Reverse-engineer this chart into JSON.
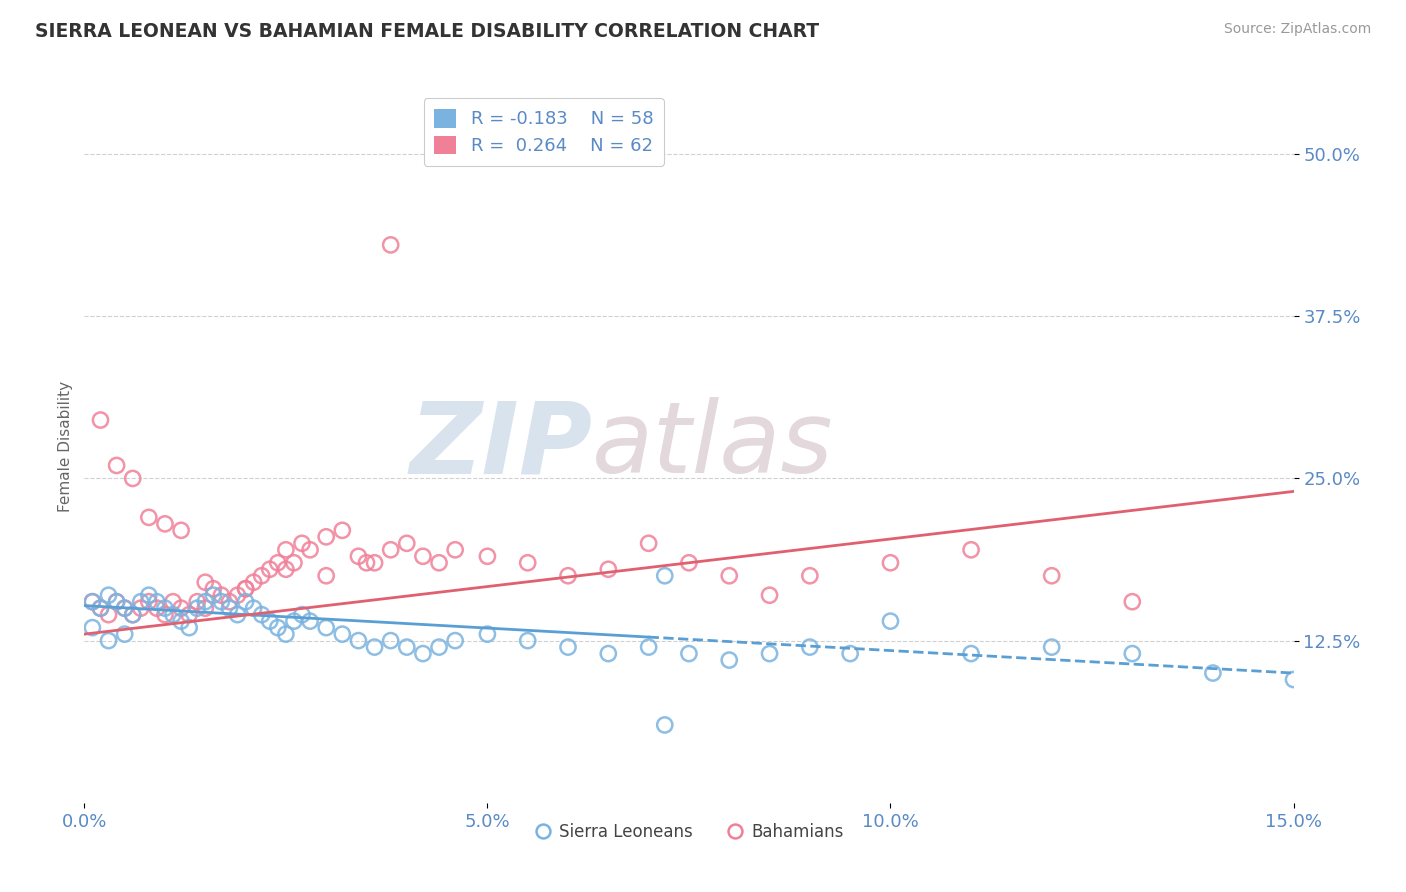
{
  "title": "SIERRA LEONEAN VS BAHAMIAN FEMALE DISABILITY CORRELATION CHART",
  "source": "Source: ZipAtlas.com",
  "ylabel": "Female Disability",
  "xlim": [
    0.0,
    0.15
  ],
  "ylim": [
    0.0,
    0.55
  ],
  "yticks": [
    0.125,
    0.25,
    0.375,
    0.5
  ],
  "ytick_labels": [
    "12.5%",
    "25.0%",
    "37.5%",
    "50.0%"
  ],
  "xticks": [
    0.0,
    0.05,
    0.1,
    0.15
  ],
  "xtick_labels": [
    "0.0%",
    "5.0%",
    "10.0%",
    "15.0%"
  ],
  "sierra_color": "#7ab3e0",
  "bahamian_color": "#f08098",
  "sierra_line_color": "#5a9fd4",
  "bahamian_line_color": "#e06070",
  "R_sierra": -0.183,
  "N_sierra": 58,
  "R_bahamian": 0.264,
  "N_bahamian": 62,
  "background_color": "#ffffff",
  "grid_color": "#d0d0d0",
  "watermark_zip": "ZIP",
  "watermark_atlas": "atlas",
  "legend_label_sierra": "Sierra Leoneans",
  "legend_label_bahamian": "Bahamians",
  "sierra_x": [
    0.001,
    0.002,
    0.003,
    0.004,
    0.005,
    0.006,
    0.007,
    0.008,
    0.009,
    0.01,
    0.011,
    0.012,
    0.013,
    0.014,
    0.015,
    0.016,
    0.017,
    0.018,
    0.019,
    0.02,
    0.021,
    0.022,
    0.023,
    0.024,
    0.025,
    0.026,
    0.027,
    0.028,
    0.03,
    0.032,
    0.034,
    0.036,
    0.038,
    0.04,
    0.042,
    0.044,
    0.046,
    0.05,
    0.055,
    0.06,
    0.065,
    0.07,
    0.075,
    0.08,
    0.085,
    0.09,
    0.095,
    0.1,
    0.11,
    0.12,
    0.13,
    0.14,
    0.15,
    0.001,
    0.003,
    0.005,
    0.072,
    0.072
  ],
  "sierra_y": [
    0.155,
    0.15,
    0.16,
    0.155,
    0.15,
    0.145,
    0.155,
    0.16,
    0.155,
    0.15,
    0.145,
    0.14,
    0.135,
    0.15,
    0.155,
    0.16,
    0.155,
    0.15,
    0.145,
    0.155,
    0.15,
    0.145,
    0.14,
    0.135,
    0.13,
    0.14,
    0.145,
    0.14,
    0.135,
    0.13,
    0.125,
    0.12,
    0.125,
    0.12,
    0.115,
    0.12,
    0.125,
    0.13,
    0.125,
    0.12,
    0.115,
    0.12,
    0.115,
    0.11,
    0.115,
    0.12,
    0.115,
    0.14,
    0.115,
    0.12,
    0.115,
    0.1,
    0.095,
    0.135,
    0.125,
    0.13,
    0.175,
    0.06
  ],
  "bahamian_x": [
    0.001,
    0.002,
    0.003,
    0.004,
    0.005,
    0.006,
    0.007,
    0.008,
    0.009,
    0.01,
    0.011,
    0.012,
    0.013,
    0.014,
    0.015,
    0.016,
    0.017,
    0.018,
    0.019,
    0.02,
    0.021,
    0.022,
    0.023,
    0.024,
    0.025,
    0.026,
    0.027,
    0.028,
    0.03,
    0.032,
    0.034,
    0.036,
    0.038,
    0.04,
    0.042,
    0.044,
    0.046,
    0.05,
    0.055,
    0.06,
    0.065,
    0.07,
    0.075,
    0.08,
    0.085,
    0.09,
    0.1,
    0.11,
    0.12,
    0.13,
    0.002,
    0.004,
    0.006,
    0.008,
    0.01,
    0.012,
    0.015,
    0.02,
    0.025,
    0.03,
    0.035,
    0.038
  ],
  "bahamian_y": [
    0.155,
    0.15,
    0.145,
    0.155,
    0.15,
    0.145,
    0.15,
    0.155,
    0.15,
    0.145,
    0.155,
    0.15,
    0.145,
    0.155,
    0.15,
    0.165,
    0.16,
    0.155,
    0.16,
    0.165,
    0.17,
    0.175,
    0.18,
    0.185,
    0.195,
    0.185,
    0.2,
    0.195,
    0.205,
    0.21,
    0.19,
    0.185,
    0.195,
    0.2,
    0.19,
    0.185,
    0.195,
    0.19,
    0.185,
    0.175,
    0.18,
    0.2,
    0.185,
    0.175,
    0.16,
    0.175,
    0.185,
    0.195,
    0.175,
    0.155,
    0.295,
    0.26,
    0.25,
    0.22,
    0.215,
    0.21,
    0.17,
    0.165,
    0.18,
    0.175,
    0.185,
    0.43
  ]
}
